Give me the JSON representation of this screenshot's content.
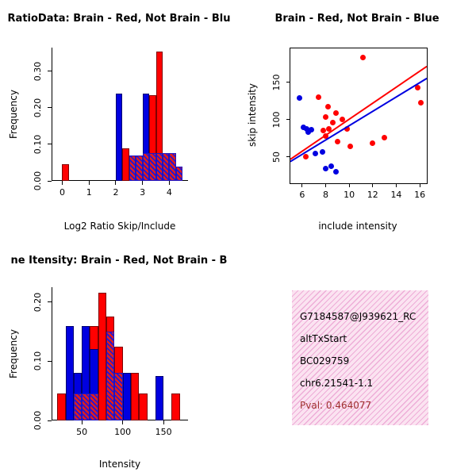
{
  "figure": {
    "background": "#ffffff"
  },
  "chart_data": [
    {
      "type": "bar",
      "title": "RatioData: Brain - Red, Not Brain - Blu",
      "xlabel": "Log2 Ratio Skip/Include",
      "ylabel": "Frequency",
      "xlim": [
        -0.4,
        4.7
      ],
      "ylim": [
        0,
        0.365
      ],
      "xticks": [
        0,
        1,
        2,
        3,
        4
      ],
      "xtick_labels": [
        "0",
        "1",
        "2",
        "3",
        "4"
      ],
      "yticks": [
        0.0,
        0.1,
        0.2,
        0.3
      ],
      "ytick_labels": [
        "0.00",
        "0.10",
        "0.20",
        "0.30"
      ],
      "binwidth": 0.25,
      "grid": false,
      "series": [
        {
          "name": "Brain (red)",
          "color": "#ff0000",
          "bars": [
            {
              "x": 0.0,
              "h": 0.045
            },
            {
              "x": 2.25,
              "h": 0.09
            },
            {
              "x": 2.5,
              "h": 0.045
            },
            {
              "x": 3.25,
              "h": 0.235
            },
            {
              "x": 3.5,
              "h": 0.355
            }
          ]
        },
        {
          "name": "Not Brain (blue)",
          "color": "#0000e0",
          "bars": [
            {
              "x": 2.0,
              "h": 0.24
            },
            {
              "x": 3.0,
              "h": 0.24
            }
          ]
        },
        {
          "name": "overlap (hatched)",
          "color": "#9b30c0",
          "style": "hatch",
          "bars": [
            {
              "x": 2.5,
              "h": 0.07
            },
            {
              "x": 2.75,
              "h": 0.07
            },
            {
              "x": 3.0,
              "h": 0.075
            },
            {
              "x": 3.25,
              "h": 0.075
            },
            {
              "x": 3.5,
              "h": 0.075
            },
            {
              "x": 3.75,
              "h": 0.075
            },
            {
              "x": 4.0,
              "h": 0.075
            },
            {
              "x": 4.25,
              "h": 0.04
            }
          ]
        }
      ]
    },
    {
      "type": "scatter",
      "title": "Brain - Red, Not Brain - Blue",
      "xlabel": "include intensity",
      "ylabel": "skip intensity",
      "xlim": [
        5,
        16.6
      ],
      "ylim": [
        15,
        195
      ],
      "xticks": [
        6,
        8,
        10,
        12,
        14,
        16
      ],
      "xtick_labels": [
        "6",
        "8",
        "10",
        "12",
        "14",
        "16"
      ],
      "yticks": [
        50,
        100,
        150
      ],
      "ytick_labels": [
        "50",
        "100",
        "150"
      ],
      "grid": false,
      "series": [
        {
          "name": "Brain (red)",
          "color": "#ff0000",
          "points": [
            [
              11.2,
              183
            ],
            [
              7.4,
              130
            ],
            [
              8.2,
              117
            ],
            [
              8.0,
              103
            ],
            [
              8.9,
              109
            ],
            [
              8.6,
              96
            ],
            [
              9.4,
              100
            ],
            [
              8.3,
              88
            ],
            [
              7.8,
              85
            ],
            [
              8.0,
              78
            ],
            [
              9.0,
              71
            ],
            [
              10.1,
              64
            ],
            [
              12.0,
              68
            ],
            [
              13.0,
              76
            ],
            [
              16.1,
              122
            ],
            [
              15.8,
              143
            ],
            [
              6.3,
              50
            ],
            [
              9.8,
              88
            ]
          ]
        },
        {
          "name": "Not Brain (blue)",
          "color": "#0000e0",
          "points": [
            [
              5.8,
              129
            ],
            [
              6.1,
              90
            ],
            [
              6.4,
              88
            ],
            [
              6.8,
              86
            ],
            [
              6.5,
              83
            ],
            [
              7.1,
              55
            ],
            [
              7.7,
              57
            ],
            [
              8.0,
              35
            ],
            [
              8.5,
              38
            ],
            [
              8.9,
              30
            ]
          ]
        }
      ],
      "lines": [
        {
          "name": "brain-fit-line",
          "color": "#ff0000",
          "x1": 5,
          "y1": 47,
          "x2": 16.6,
          "y2": 171
        },
        {
          "name": "notbrain-fit-line",
          "color": "#0000e0",
          "x1": 5,
          "y1": 44,
          "x2": 16.6,
          "y2": 155
        }
      ]
    },
    {
      "type": "bar",
      "title": "ne Itensity: Brain - Red, Not Brain - B",
      "xlabel": "Intensity",
      "ylabel": "Frequency",
      "xlim": [
        13,
        180
      ],
      "ylim": [
        0,
        0.225
      ],
      "xticks": [
        50,
        100,
        150
      ],
      "xtick_labels": [
        "50",
        "100",
        "150"
      ],
      "yticks": [
        0.0,
        0.1,
        0.2
      ],
      "ytick_labels": [
        "0.00",
        "0.10",
        "0.20"
      ],
      "binwidth": 10,
      "grid": false,
      "series": [
        {
          "name": "Brain (red)",
          "color": "#ff0000",
          "bars": [
            {
              "x": 20,
              "h": 0.045
            },
            {
              "x": 60,
              "h": 0.16
            },
            {
              "x": 70,
              "h": 0.215
            },
            {
              "x": 80,
              "h": 0.175
            },
            {
              "x": 90,
              "h": 0.125
            },
            {
              "x": 110,
              "h": 0.08
            },
            {
              "x": 120,
              "h": 0.045
            },
            {
              "x": 160,
              "h": 0.045
            }
          ]
        },
        {
          "name": "Not Brain (blue)",
          "color": "#0000e0",
          "bars": [
            {
              "x": 30,
              "h": 0.16
            },
            {
              "x": 40,
              "h": 0.08
            },
            {
              "x": 50,
              "h": 0.16
            },
            {
              "x": 60,
              "h": 0.12
            },
            {
              "x": 100,
              "h": 0.08
            },
            {
              "x": 140,
              "h": 0.075
            }
          ]
        },
        {
          "name": "overlap (hatched)",
          "color": "#9b30c0",
          "style": "hatch",
          "bars": [
            {
              "x": 40,
              "h": 0.045
            },
            {
              "x": 50,
              "h": 0.045
            },
            {
              "x": 60,
              "h": 0.045
            },
            {
              "x": 80,
              "h": 0.15
            },
            {
              "x": 90,
              "h": 0.08
            }
          ]
        }
      ]
    },
    {
      "type": "info",
      "bg": "#fbe3f1",
      "lines": [
        "G7184587@J939621_RC",
        "altTxStart",
        "BC029759",
        "chr6.21541-1.1"
      ],
      "pval_label": "Pval: 0.464077",
      "pval_color": "#a03030"
    }
  ]
}
